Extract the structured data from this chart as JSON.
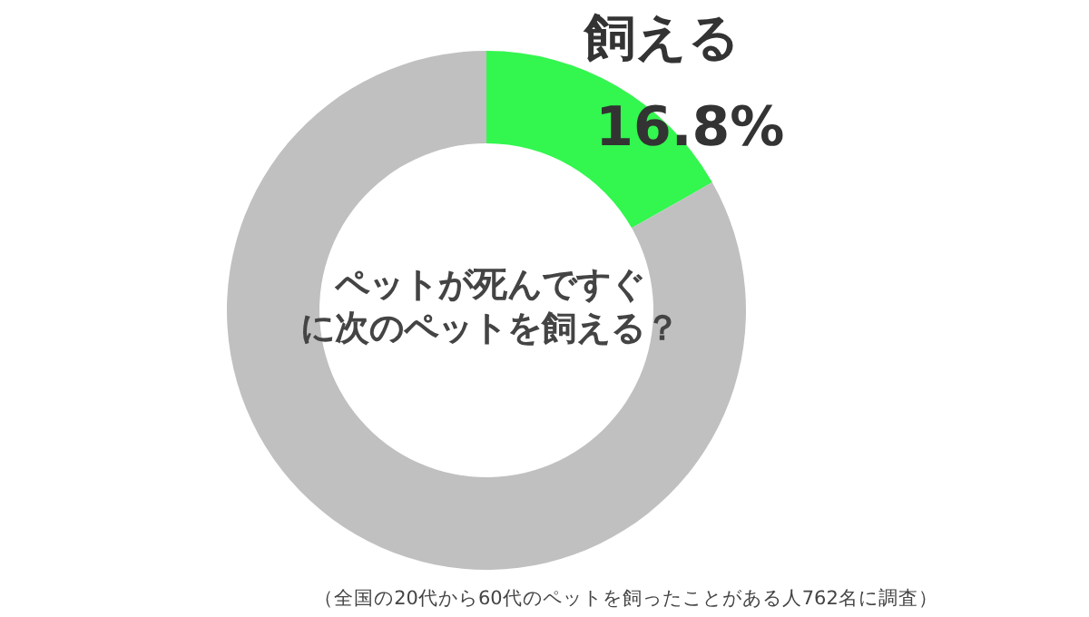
{
  "chart_data": {
    "type": "donut",
    "title": "ペットが死んですぐに次のペットを飼える？",
    "categories": [
      "飼える",
      null
    ],
    "values": [
      16.8,
      83.2
    ],
    "colors": [
      "#33f64f",
      "#c0c0c0"
    ],
    "value_labels": [
      "16.8%",
      null
    ],
    "annotations": [
      "（全国の20代から60代のペットを飼ったことがある人762名に調査）"
    ]
  }
}
